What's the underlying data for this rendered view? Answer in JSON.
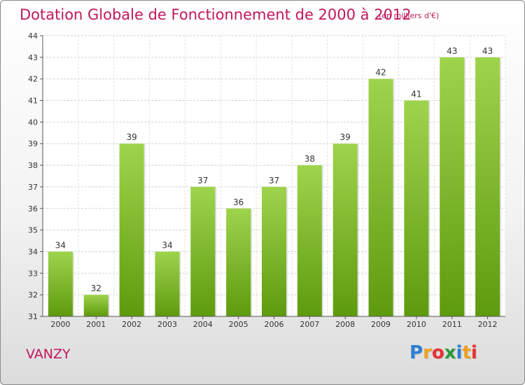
{
  "header": {
    "title": "Dotation Globale de Fonctionnement de 2000 à 2012",
    "unit": "(en milliers d'€)"
  },
  "footer": {
    "place": "VANZY",
    "logo_text": "Proxiti"
  },
  "colors": {
    "title": "#c2185b",
    "bar_top": "#9ed44c",
    "bar_bottom": "#5e9a0e",
    "grid": "#cfcfcf"
  },
  "chart_data": {
    "type": "bar",
    "categories": [
      "2000",
      "2001",
      "2002",
      "2003",
      "2004",
      "2005",
      "2006",
      "2007",
      "2008",
      "2009",
      "2010",
      "2011",
      "2012"
    ],
    "values": [
      34,
      32,
      39,
      34,
      37,
      36,
      37,
      38,
      39,
      42,
      41,
      43,
      43
    ],
    "title": "Dotation Globale de Fonctionnement de 2000 à 2012",
    "xlabel": "",
    "ylabel": "",
    "ylim": [
      31,
      44
    ],
    "yticks": [
      31,
      32,
      33,
      34,
      35,
      36,
      37,
      38,
      39,
      40,
      41,
      42,
      43,
      44
    ],
    "grid": true,
    "data_labels": true
  }
}
